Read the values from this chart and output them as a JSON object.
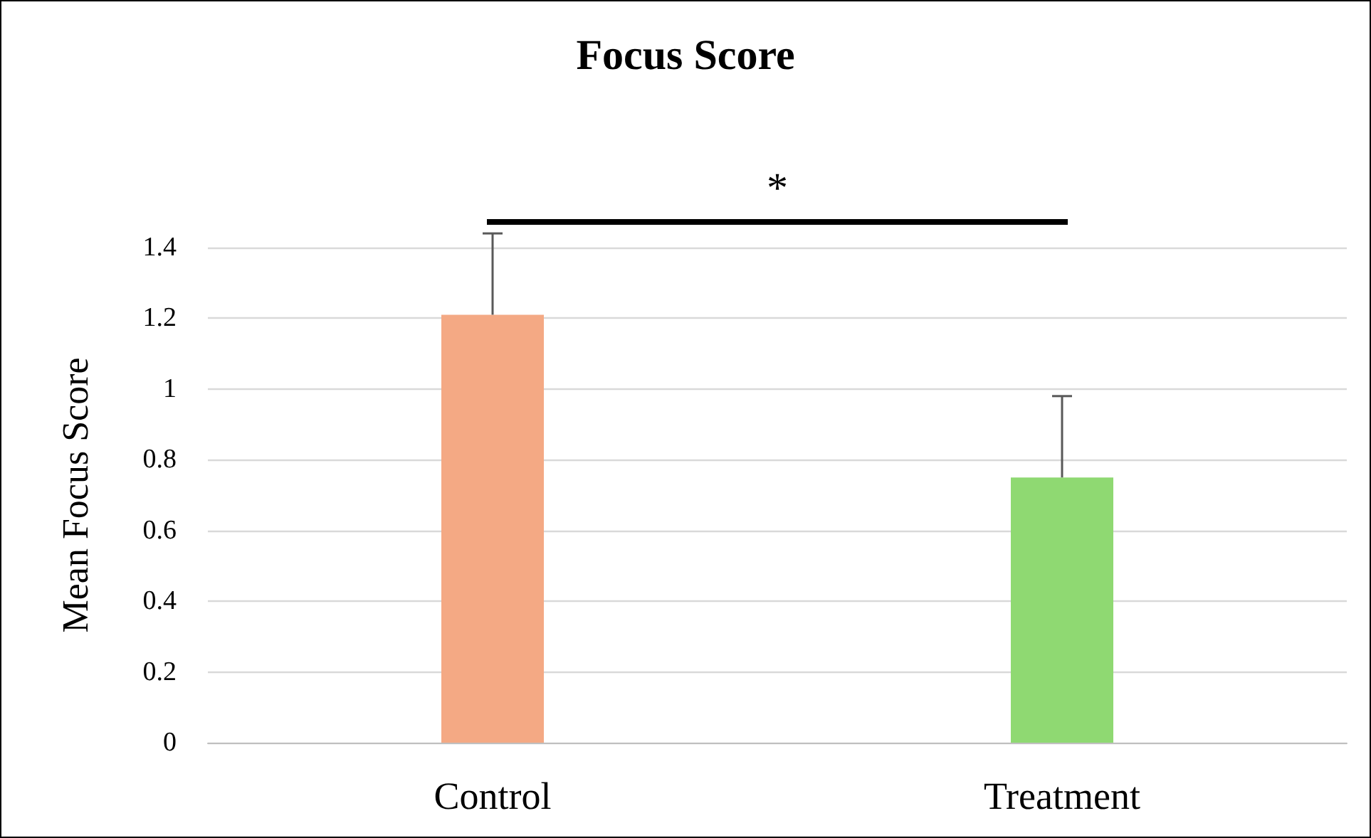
{
  "chart_data": {
    "type": "bar",
    "title": "Focus Score",
    "ylabel": "Mean Focus Score",
    "categories": [
      "Control",
      "Treatment"
    ],
    "values": [
      1.21,
      0.75
    ],
    "colors": [
      "#f4a984",
      "#8fd972"
    ],
    "errors": [
      [
        1.21,
        1.44
      ],
      [
        0.75,
        0.98
      ]
    ],
    "ylim": [
      0,
      1.4
    ],
    "yticks": [
      0,
      0.2,
      0.4,
      0.6,
      0.8,
      1,
      1.2,
      1.4
    ],
    "grid": "y",
    "annotations": [
      "*"
    ]
  }
}
